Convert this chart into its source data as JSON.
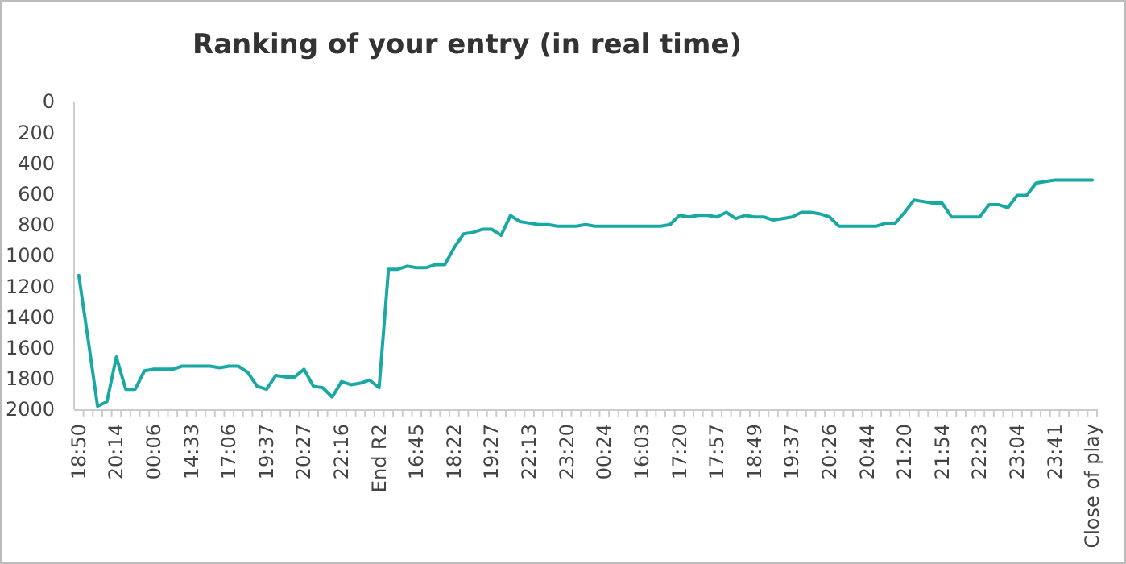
{
  "chart_data": {
    "type": "line",
    "title": "Ranking of your entry (in real time)",
    "categories": [
      "18:50",
      null,
      null,
      null,
      "20:14",
      null,
      null,
      null,
      "00:06",
      null,
      null,
      null,
      "14:33",
      null,
      null,
      null,
      "17:06",
      null,
      null,
      null,
      "19:37",
      null,
      null,
      null,
      "20:27",
      null,
      null,
      null,
      "22:16",
      null,
      null,
      null,
      "End R2",
      null,
      null,
      null,
      "16:45",
      null,
      null,
      null,
      "18:22",
      null,
      null,
      null,
      "19:27",
      null,
      null,
      null,
      "22:13",
      null,
      null,
      null,
      "23:20",
      null,
      null,
      null,
      "00:24",
      null,
      null,
      null,
      "16:03",
      null,
      null,
      null,
      "17:20",
      null,
      null,
      null,
      "17:57",
      null,
      null,
      null,
      "18:49",
      null,
      null,
      null,
      "19:37",
      null,
      null,
      null,
      "20:26",
      null,
      null,
      null,
      "20:44",
      null,
      null,
      null,
      "21:20",
      null,
      null,
      null,
      "21:54",
      null,
      null,
      null,
      "22:23",
      null,
      null,
      null,
      "23:04",
      null,
      null,
      null,
      "23:41",
      null,
      null,
      null,
      "Close of play"
    ],
    "series": [
      {
        "color": "#1aa9a2",
        "values": [
          1130,
          1550,
          1980,
          1950,
          1660,
          1870,
          1870,
          1750,
          1740,
          1740,
          1740,
          1720,
          1720,
          1720,
          1720,
          1730,
          1720,
          1720,
          1760,
          1850,
          1870,
          1780,
          1790,
          1790,
          1740,
          1850,
          1860,
          1920,
          1820,
          1840,
          1830,
          1810,
          1860,
          1090,
          1090,
          1070,
          1080,
          1080,
          1060,
          1060,
          950,
          860,
          850,
          830,
          830,
          870,
          740,
          780,
          790,
          800,
          800,
          810,
          810,
          810,
          800,
          810,
          810,
          810,
          810,
          810,
          810,
          810,
          810,
          800,
          740,
          750,
          740,
          740,
          750,
          720,
          760,
          740,
          750,
          750,
          770,
          760,
          750,
          720,
          720,
          730,
          750,
          810,
          810,
          810,
          810,
          810,
          790,
          790,
          720,
          640,
          650,
          660,
          660,
          750,
          750,
          750,
          750,
          670,
          670,
          690,
          610,
          610,
          530,
          520,
          510,
          510,
          510,
          510,
          510
        ]
      }
    ],
    "ylim": [
      2000,
      0
    ],
    "yticks": [
      0,
      200,
      400,
      600,
      800,
      1000,
      1200,
      1400,
      1600,
      1800,
      2000
    ],
    "grid": false,
    "marker": "none",
    "line_style": "solid"
  }
}
